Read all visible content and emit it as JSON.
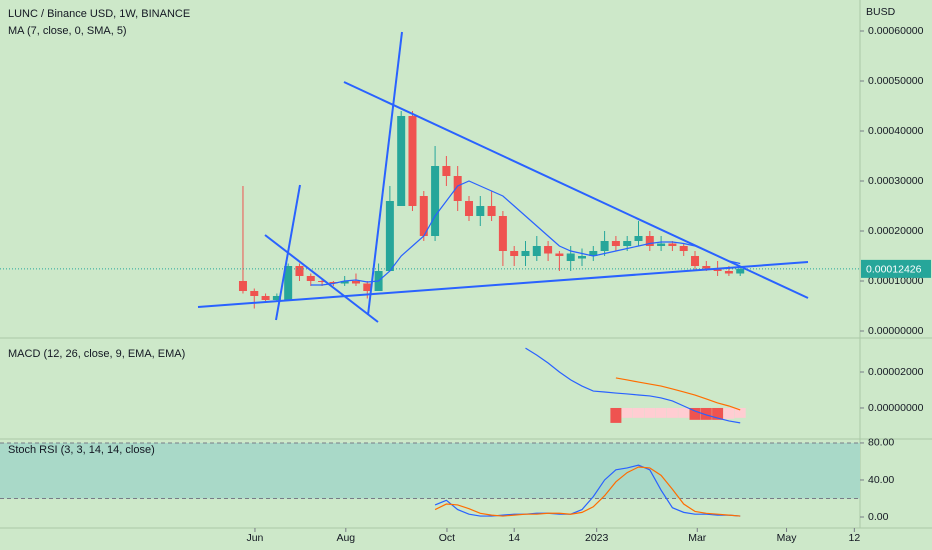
{
  "chart_data": [
    {
      "type": "candlestick",
      "title": "LUNC / Binance USD, 1W, BINANCE",
      "axis_unit": "BUSD",
      "x": [
        0,
        1,
        2,
        3,
        4,
        5,
        6,
        7,
        8,
        9,
        10,
        11,
        12,
        13,
        14,
        15,
        16,
        17,
        18,
        19,
        20,
        21,
        22,
        23,
        24,
        25,
        26,
        27,
        28,
        29,
        30,
        31,
        32,
        33,
        34,
        35,
        36,
        37,
        38,
        39,
        40,
        41,
        42,
        43,
        44
      ],
      "open": [
        0.0001,
        8e-05,
        7e-05,
        6.2e-05,
        6e-05,
        0.00013,
        0.00011,
        0.0001,
        9.8e-05,
        9.5e-05,
        0.0001,
        9.5e-05,
        8e-05,
        0.00012,
        0.00025,
        0.00043,
        0.00027,
        0.00019,
        0.00033,
        0.00031,
        0.00026,
        0.00023,
        0.00025,
        0.00023,
        0.00016,
        0.00015,
        0.00015,
        0.00017,
        0.000155,
        0.00014,
        0.000145,
        0.00015,
        0.00016,
        0.00018,
        0.00017,
        0.00018,
        0.00019,
        0.00017,
        0.000175,
        0.00017,
        0.00015,
        0.00013,
        0.000125,
        0.00012,
        0.000115
      ],
      "high": [
        0.00029,
        8.5e-05,
        7.5e-05,
        7.5e-05,
        0.000135,
        0.000135,
        0.000115,
        0.000105,
        0.0001,
        0.00011,
        0.000115,
        0.0001,
        0.000135,
        0.00029,
        0.00044,
        0.00044,
        0.00028,
        0.00037,
        0.00035,
        0.00033,
        0.00027,
        0.00027,
        0.00028,
        0.00024,
        0.00017,
        0.00018,
        0.00019,
        0.00018,
        0.00016,
        0.00017,
        0.000165,
        0.00017,
        0.0002,
        0.00019,
        0.00019,
        0.00022,
        0.0002,
        0.00019,
        0.00018,
        0.000175,
        0.00016,
        0.00014,
        0.00014,
        0.00013,
        0.00013
      ],
      "low": [
        7.5e-05,
        4.5e-05,
        6e-05,
        6e-05,
        6e-05,
        0.0001,
        9e-05,
        9e-05,
        9e-05,
        9e-05,
        9e-05,
        6.5e-05,
        8e-05,
        0.00012,
        0.00025,
        0.00024,
        0.00018,
        0.00018,
        0.00029,
        0.00024,
        0.00022,
        0.00021,
        0.00022,
        0.00013,
        0.00013,
        0.00013,
        0.00014,
        0.00014,
        0.00012,
        0.00012,
        0.00013,
        0.00014,
        0.00015,
        0.00016,
        0.00016,
        0.00017,
        0.00016,
        0.00016,
        0.00016,
        0.00015,
        0.00012,
        0.00012,
        0.00011,
        0.00011,
        0.00011
      ],
      "close": [
        8e-05,
        7e-05,
        6.2e-05,
        7e-05,
        0.00013,
        0.00011,
        0.0001,
        9.8e-05,
        9.5e-05,
        0.0001,
        9.5e-05,
        8e-05,
        0.00012,
        0.00026,
        0.00043,
        0.00025,
        0.00019,
        0.00033,
        0.00031,
        0.00026,
        0.00023,
        0.00025,
        0.00023,
        0.00016,
        0.00015,
        0.00016,
        0.00017,
        0.000155,
        0.00015,
        0.000155,
        0.00015,
        0.00016,
        0.00018,
        0.00017,
        0.00018,
        0.00019,
        0.00017,
        0.000175,
        0.00017,
        0.00016,
        0.00013,
        0.000125,
        0.00012,
        0.000115,
        0.00012426
      ],
      "up_color": "#26a69a",
      "down_color": "#ef5350",
      "overlay": {
        "name": "MA (7, close, 0, SMA, 5)",
        "color": "#2962ff",
        "x": [
          6,
          7,
          8,
          9,
          10,
          11,
          12,
          13,
          14,
          15,
          16,
          17,
          18,
          19,
          20,
          21,
          22,
          23,
          24,
          25,
          26,
          27,
          28,
          29,
          30,
          31,
          32,
          33,
          34,
          35,
          36,
          37,
          38,
          39,
          40,
          41,
          42,
          43,
          44
        ],
        "values": [
          9.2e-05,
          9.2e-05,
          9.5e-05,
          0.0001,
          0.000102,
          9.8e-05,
          0.0001,
          0.00012,
          0.00015,
          0.00017,
          0.00019,
          0.00023,
          0.00026,
          0.00029,
          0.0003,
          0.00029,
          0.00028,
          0.00027,
          0.00025,
          0.00023,
          0.00021,
          0.00019,
          0.00017,
          0.00016,
          0.000155,
          0.00015,
          0.000155,
          0.00016,
          0.000165,
          0.00017,
          0.000175,
          0.000178,
          0.000178,
          0.000175,
          0.00017,
          0.00016,
          0.00015,
          0.00014,
          0.000135
        ]
      },
      "last_price": {
        "value": 0.00012426,
        "label": "0.00012426"
      },
      "xlim": [
        -21.5,
        54.6
      ],
      "ylim": [
        -1.2e-05,
        0.000662
      ],
      "yticks": [
        {
          "value": 0,
          "label": "0.00000000"
        },
        {
          "value": 0.0001,
          "label": "0.00010000"
        },
        {
          "value": 0.0002,
          "label": "0.00020000"
        },
        {
          "value": 0.0003,
          "label": "0.00030000"
        },
        {
          "value": 0.0004,
          "label": "0.00040000"
        },
        {
          "value": 0.0005,
          "label": "0.00050000"
        },
        {
          "value": 0.0006,
          "label": "0.00060000"
        }
      ]
    },
    {
      "type": "macd",
      "title": "MACD (12, 26, close, 9, EMA, EMA)",
      "series": [
        {
          "kind": "line",
          "color": "#2962ff",
          "x": [
            25,
            26,
            27,
            28,
            29,
            30,
            31,
            32,
            33,
            34,
            35,
            36,
            37,
            38,
            39,
            40,
            41,
            42,
            43,
            44
          ],
          "values": [
            3.33e-05,
            2.94e-05,
            2.5e-05,
            2e-05,
            1.56e-05,
            1.22e-05,
            9.4e-06,
            8.9e-06,
            8.3e-06,
            7.8e-06,
            7.2e-06,
            6.7e-06,
            5.6e-06,
            3.9e-06,
            1.1e-06,
            -1.7e-06,
            -3.9e-06,
            -5.6e-06,
            -7.2e-06,
            -8.3e-06
          ]
        },
        {
          "kind": "line",
          "color": "#ff6d00",
          "x": [
            33,
            34,
            35,
            36,
            37,
            38,
            39,
            40,
            41,
            42,
            43,
            44
          ],
          "values": [
            1.67e-05,
            1.56e-05,
            1.44e-05,
            1.33e-05,
            1.22e-05,
            1.06e-05,
            8.9e-06,
            7.2e-06,
            5e-06,
            2.8e-06,
            1.1e-06,
            -1.1e-06
          ]
        },
        {
          "kind": "histogram",
          "x": [
            33,
            34,
            35,
            36,
            37,
            38,
            39,
            40,
            41,
            42,
            43,
            44
          ],
          "values": [
            -8.3e-06,
            -5.5e-06,
            -5.5e-06,
            -5.5e-06,
            -5.5e-06,
            -5.5e-06,
            -5.5e-06,
            -6.6e-06,
            -6.6e-06,
            -6.6e-06,
            -6e-06,
            -5.5e-06
          ],
          "colors": [
            "#ef5350",
            "#ffcdd2",
            "#ffcdd2",
            "#ffcdd2",
            "#ffcdd2",
            "#ffcdd2",
            "#ffcdd2",
            "#ef5350",
            "#ef5350",
            "#ef5350",
            "#ffcdd2",
            "#ffcdd2"
          ]
        }
      ],
      "xlim": [
        -21.5,
        54.6
      ],
      "ylim": [
        -1.67e-05,
        3.78e-05
      ],
      "yticks": [
        {
          "value": 0,
          "label": "0.00000000"
        },
        {
          "value": 2e-05,
          "label": "0.00002000"
        }
      ]
    },
    {
      "type": "stoch-rsi",
      "title": "Stoch RSI (3, 3, 14, 14, close)",
      "series": [
        {
          "kind": "line",
          "color": "#2962ff",
          "x": [
            17,
            18,
            19,
            20,
            21,
            22,
            23,
            24,
            25,
            26,
            27,
            28,
            29,
            30,
            31,
            32,
            33,
            34,
            35,
            36,
            37,
            38,
            39,
            40,
            41,
            42,
            43,
            44
          ],
          "values": [
            13,
            18,
            8,
            3,
            1,
            1,
            2,
            3,
            3,
            4,
            4,
            3,
            3,
            8,
            22,
            40,
            51,
            53,
            56,
            51,
            29,
            10,
            5,
            3,
            3,
            2,
            2,
            1
          ]
        },
        {
          "kind": "line",
          "color": "#ff6d00",
          "x": [
            17,
            18,
            19,
            20,
            21,
            22,
            23,
            24,
            25,
            26,
            27,
            28,
            29,
            30,
            31,
            32,
            33,
            34,
            35,
            36,
            37,
            38,
            39,
            40,
            41,
            42,
            43,
            44
          ],
          "values": [
            8,
            14,
            13,
            9,
            4,
            2,
            1,
            2,
            3,
            3,
            4,
            4,
            3,
            5,
            11,
            23,
            38,
            48,
            54,
            53,
            45,
            30,
            14,
            6,
            4,
            3,
            2,
            1
          ]
        }
      ],
      "bands": [
        20,
        80
      ],
      "band_color": "#a9d9c8",
      "xlim": [
        -21.5,
        54.6
      ],
      "ylim": [
        -11.9,
        83.2
      ],
      "yticks": [
        {
          "value": 0,
          "label": "0.00"
        },
        {
          "value": 40,
          "label": "40.00"
        },
        {
          "value": 80,
          "label": "80.00"
        }
      ],
      "xticks": [
        {
          "value": 1.06,
          "label": "Jun"
        },
        {
          "value": 9.1,
          "label": "Aug"
        },
        {
          "value": 18.05,
          "label": "Oct"
        },
        {
          "value": 24.0,
          "label": "14"
        },
        {
          "value": 31.3,
          "label": "2023"
        },
        {
          "value": 40.2,
          "label": "Mar"
        },
        {
          "value": 48.1,
          "label": "May"
        },
        {
          "value": 54.1,
          "label": "12"
        }
      ]
    }
  ]
}
